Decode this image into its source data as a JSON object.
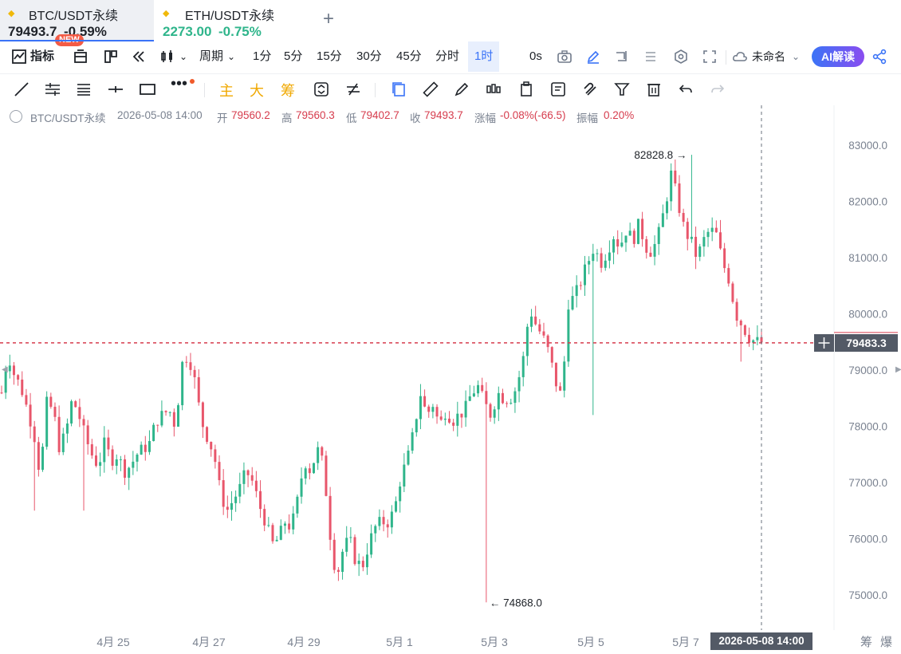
{
  "tabs": [
    {
      "symbol": "BTC/USDT永续",
      "price": "79493.7",
      "change": "-0.59%",
      "badge": "NEW"
    },
    {
      "symbol": "ETH/USDT永续",
      "price": "2273.00",
      "change": "-0.75%"
    }
  ],
  "toolbar": {
    "indicators_label": "指标",
    "period_label": "周期",
    "intervals": [
      "1分",
      "5分",
      "15分",
      "30分",
      "45分",
      "分时",
      "1时"
    ],
    "active_interval": "1时",
    "timer": "0s",
    "layout_name": "未命名",
    "ai_label": "AI解读"
  },
  "drawing_tools": {
    "main_label": "主",
    "big_label": "大",
    "chips_label": "筹"
  },
  "info": {
    "symbol": "BTC/USDT永续",
    "datetime": "2026-05-08 14:00",
    "open_label": "开",
    "open": "79560.2",
    "high_label": "高",
    "high": "79560.3",
    "low_label": "低",
    "low": "79402.7",
    "close_label": "收",
    "close": "79493.7",
    "change_label": "涨幅",
    "change": "-0.08%(-66.5)",
    "amp_label": "振幅",
    "amplitude": "0.20%"
  },
  "crosshair": {
    "price": "79483.3",
    "time": "2026-05-08 14:00"
  },
  "bottom_right": {
    "chips": "筹",
    "liquidation": "爆"
  },
  "colors": {
    "up": "#2fb58b",
    "down": "#e8566b",
    "accent": "#3a73f7"
  },
  "chart_data": {
    "type": "candlestick",
    "ylim": [
      74500,
      83400
    ],
    "y_ticks": [
      "83000.0",
      "82000.0",
      "81000.0",
      "80000.0",
      "79000.0",
      "78000.0",
      "77000.0",
      "76000.0",
      "75000.0"
    ],
    "x_ticks": [
      "4月 25",
      "4月 27",
      "4月 29",
      "5月 1",
      "5月 3",
      "5月 5",
      "5月 7"
    ],
    "annotations": [
      {
        "label": "82828.8",
        "value": 82828.8,
        "marker": "→"
      },
      {
        "label": "74868.0",
        "value": 74868.0,
        "marker": "←"
      }
    ],
    "price_path": [
      78600,
      79300,
      78900,
      78700,
      78300,
      77900,
      77100,
      78400,
      78300,
      77600,
      77900,
      78500,
      78200,
      77800,
      77500,
      77300,
      77700,
      77400,
      77500,
      77200,
      77300,
      77500,
      77600,
      77700,
      78100,
      78200,
      78300,
      78000,
      79100,
      79300,
      78800,
      78100,
      77800,
      77500,
      76800,
      76500,
      76700,
      76900,
      77200,
      77000,
      76600,
      76300,
      75900,
      76000,
      76300,
      76200,
      76700,
      77400,
      77200,
      77600,
      77300,
      76100,
      75300,
      75800,
      76000,
      75600,
      75500,
      75900,
      76200,
      76300,
      76300,
      76500,
      77100,
      77400,
      77900,
      78600,
      78200,
      78400,
      78000,
      78300,
      78100,
      78200,
      78300,
      78600,
      78700,
      78400,
      78200,
      78600,
      78500,
      78500,
      78700,
      79200,
      80100,
      79800,
      79600,
      79300,
      78800,
      78500,
      80200,
      80300,
      80600,
      80900,
      81200,
      80900,
      81100,
      81400,
      81200,
      81500,
      81300,
      81600,
      81200,
      81100,
      81400,
      81900,
      82500,
      82000,
      81500,
      81300,
      81000,
      81300,
      81500,
      81400,
      80900,
      80600,
      80000,
      79800,
      79600,
      79500,
      79493.7
    ]
  }
}
